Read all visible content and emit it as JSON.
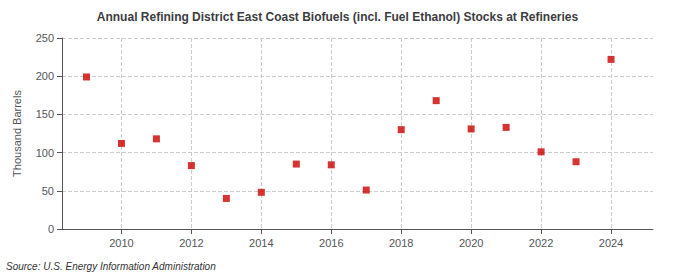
{
  "chart_data": {
    "type": "scatter",
    "title": "Annual Refining District East Coast Biofuels (incl. Fuel Ethanol) Stocks at Refineries",
    "ylabel": "Thousand Barrels",
    "source": "Source: U.S. Energy Information Administration",
    "x": [
      2009,
      2010,
      2011,
      2012,
      2013,
      2014,
      2015,
      2016,
      2017,
      2018,
      2019,
      2020,
      2021,
      2022,
      2023,
      2024
    ],
    "values": [
      199,
      112,
      118,
      83,
      40,
      48,
      85,
      84,
      51,
      130,
      168,
      131,
      133,
      101,
      88,
      222
    ],
    "color": "#cc0000",
    "marker": "square",
    "ylim": [
      0,
      250
    ],
    "yticks": [
      0,
      50,
      100,
      150,
      200,
      250
    ],
    "xlim": [
      2008.3,
      2025.2
    ],
    "xticks": [
      2010,
      2012,
      2014,
      2016,
      2018,
      2020,
      2022,
      2024
    ],
    "grid": true
  }
}
